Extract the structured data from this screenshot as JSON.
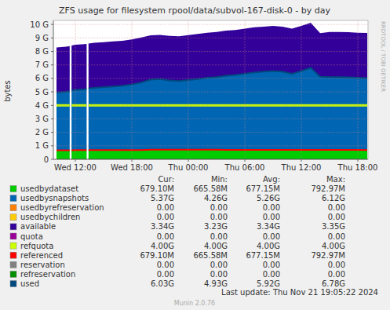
{
  "chart_data": {
    "type": "area",
    "title": "ZFS usage for filesystem rpool/data/subvol-167-disk-0 - by day",
    "y_label": "bytes",
    "side_text": "RRDTOOL / TOBI OETIKER",
    "last_update": "Last update: Thu Nov 21 19:05:22 2024",
    "footer": "Munin 2.0.76",
    "stat_headers": [
      "Cur:",
      "Min:",
      "Avg:",
      "Max:"
    ],
    "stacked": true,
    "grid": true,
    "xlim": [
      9.667,
      43.083
    ],
    "xticks": [
      {
        "value": 12,
        "label": "Wed 12:00"
      },
      {
        "value": 18,
        "label": "Wed 18:00"
      },
      {
        "value": 24,
        "label": "Thu 00:00"
      },
      {
        "value": 30,
        "label": "Thu 06:00"
      },
      {
        "value": 36,
        "label": "Thu 12:00"
      },
      {
        "value": 42,
        "label": "Thu 18:00"
      }
    ],
    "ylim": [
      0,
      10.3
    ],
    "yticks": [
      0,
      {
        "value": 1,
        "label": "1 G"
      },
      {
        "value": 2,
        "label": "2 G"
      },
      {
        "value": 3,
        "label": "3 G"
      },
      {
        "value": 4,
        "label": "4 G"
      },
      {
        "value": 5,
        "label": "5 G"
      },
      {
        "value": 6,
        "label": "6 G"
      },
      {
        "value": 7,
        "label": "7 G"
      },
      {
        "value": 8,
        "label": "8 G"
      },
      {
        "value": 9,
        "label": "9 G"
      },
      {
        "value": 10,
        "label": "10 G"
      }
    ],
    "x": [
      10,
      11,
      11.4,
      11.5,
      11.6,
      12,
      13,
      13.2,
      13.3,
      13.4,
      14,
      15,
      16,
      17,
      18,
      19,
      20,
      21,
      22,
      23,
      24,
      25,
      26,
      27,
      28,
      29,
      30,
      31,
      32,
      33,
      34,
      35,
      36,
      37,
      38,
      39,
      40,
      41,
      42,
      43
    ],
    "series": [
      {
        "name": "usedbydataset",
        "type": "area",
        "color": "#00cc00",
        "stats": [
          "679.10M",
          "665.58M",
          "677.15M",
          "792.97M"
        ],
        "values": [
          0.67,
          0.67,
          0.67,
          null,
          0.67,
          0.69,
          0.69,
          0.69,
          null,
          0.69,
          0.69,
          0.69,
          0.69,
          0.69,
          0.69,
          0.69,
          0.72,
          0.72,
          0.72,
          0.72,
          0.72,
          0.72,
          0.72,
          0.72,
          0.7,
          0.7,
          0.7,
          0.7,
          0.7,
          0.7,
          0.7,
          0.7,
          0.7,
          0.7,
          0.7,
          0.7,
          0.7,
          0.7,
          0.7,
          0.679
        ]
      },
      {
        "name": "usedbysnapshots",
        "type": "area",
        "color": "#0066b3",
        "stats": [
          "5.37G",
          "4.26G",
          "5.26G",
          "6.12G"
        ],
        "values": [
          4.27,
          4.33,
          4.38,
          null,
          4.43,
          4.46,
          4.51,
          4.53,
          null,
          4.56,
          4.61,
          4.66,
          4.71,
          4.76,
          4.86,
          5.01,
          5.18,
          5.23,
          5.13,
          5.08,
          5.16,
          5.23,
          5.33,
          5.38,
          5.5,
          5.55,
          5.65,
          5.75,
          5.8,
          5.85,
          5.8,
          5.65,
          5.85,
          6.08,
          5.42,
          5.4,
          5.4,
          5.38,
          5.35,
          5.35
        ]
      },
      {
        "name": "usedbyrefreservation",
        "type": "area",
        "color": "#ff8000",
        "stats": [
          "0.00",
          "0.00",
          "0.00",
          "0.00"
        ],
        "values": [
          0,
          0,
          0,
          null,
          0,
          0,
          0,
          0,
          null,
          0,
          0,
          0,
          0,
          0,
          0,
          0,
          0,
          0,
          0,
          0,
          0,
          0,
          0,
          0,
          0,
          0,
          0,
          0,
          0,
          0,
          0,
          0,
          0,
          0,
          0,
          0,
          0,
          0,
          0,
          0
        ]
      },
      {
        "name": "usedbychildren",
        "type": "area",
        "color": "#ffcc00",
        "stats": [
          "0.00",
          "0.00",
          "0.00",
          "0.00"
        ],
        "values": [
          0,
          0,
          0,
          null,
          0,
          0,
          0,
          0,
          null,
          0,
          0,
          0,
          0,
          0,
          0,
          0,
          0,
          0,
          0,
          0,
          0,
          0,
          0,
          0,
          0,
          0,
          0,
          0,
          0,
          0,
          0,
          0,
          0,
          0,
          0,
          0,
          0,
          0,
          0,
          0
        ]
      },
      {
        "name": "available",
        "type": "area",
        "color": "#330099",
        "stats": [
          "3.34G",
          "3.23G",
          "3.34G",
          "3.35G"
        ],
        "values": [
          3.35,
          3.35,
          3.34,
          null,
          3.34,
          3.34,
          3.34,
          3.34,
          null,
          3.34,
          3.34,
          3.34,
          3.34,
          3.34,
          3.34,
          3.34,
          3.3,
          3.28,
          3.3,
          3.32,
          3.33,
          3.34,
          3.34,
          3.34,
          3.34,
          3.34,
          3.34,
          3.34,
          3.34,
          3.34,
          3.34,
          3.34,
          3.34,
          3.35,
          3.23,
          3.34,
          3.34,
          3.34,
          3.34,
          3.34
        ]
      },
      {
        "name": "quota",
        "type": "line",
        "color": "#990099",
        "stats": [
          "0.00",
          "0.00",
          "0.00",
          "0.00"
        ],
        "values": [
          0,
          0,
          0,
          null,
          0,
          0,
          0,
          0,
          null,
          0,
          0,
          0,
          0,
          0,
          0,
          0,
          0,
          0,
          0,
          0,
          0,
          0,
          0,
          0,
          0,
          0,
          0,
          0,
          0,
          0,
          0,
          0,
          0,
          0,
          0,
          0,
          0,
          0,
          0,
          0
        ]
      },
      {
        "name": "refquota",
        "type": "line",
        "color": "#ccff00",
        "stats": [
          "4.00G",
          "4.00G",
          "4.00G",
          "4.00G"
        ],
        "values": [
          4,
          4,
          4,
          null,
          4,
          4,
          4,
          4,
          null,
          4,
          4,
          4,
          4,
          4,
          4,
          4,
          4,
          4,
          4,
          4,
          4,
          4,
          4,
          4,
          4,
          4,
          4,
          4,
          4,
          4,
          4,
          4,
          4,
          4,
          4,
          4,
          4,
          4,
          4,
          4
        ]
      },
      {
        "name": "referenced",
        "type": "line",
        "color": "#ff0000",
        "stats": [
          "679.10M",
          "665.58M",
          "677.15M",
          "792.97M"
        ],
        "values": [
          0.67,
          0.67,
          0.67,
          null,
          0.67,
          0.69,
          0.69,
          0.69,
          null,
          0.69,
          0.69,
          0.69,
          0.69,
          0.69,
          0.69,
          0.69,
          0.72,
          0.72,
          0.72,
          0.72,
          0.72,
          0.72,
          0.72,
          0.72,
          0.7,
          0.7,
          0.7,
          0.7,
          0.7,
          0.7,
          0.7,
          0.7,
          0.7,
          0.7,
          0.7,
          0.7,
          0.7,
          0.7,
          0.7,
          0.679
        ]
      },
      {
        "name": "reservation",
        "type": "line",
        "color": "#808080",
        "stats": [
          "0.00",
          "0.00",
          "0.00",
          "0.00"
        ],
        "values": [
          0,
          0,
          0,
          null,
          0,
          0,
          0,
          0,
          null,
          0,
          0,
          0,
          0,
          0,
          0,
          0,
          0,
          0,
          0,
          0,
          0,
          0,
          0,
          0,
          0,
          0,
          0,
          0,
          0,
          0,
          0,
          0,
          0,
          0,
          0,
          0,
          0,
          0,
          0,
          0
        ]
      },
      {
        "name": "refreservation",
        "type": "line",
        "color": "#008f00",
        "stats": [
          "0.00",
          "0.00",
          "0.00",
          "0.00"
        ],
        "values": [
          0,
          0,
          0,
          null,
          0,
          0,
          0,
          0,
          null,
          0,
          0,
          0,
          0,
          0,
          0,
          0,
          0,
          0,
          0,
          0,
          0,
          0,
          0,
          0,
          0,
          0,
          0,
          0,
          0,
          0,
          0,
          0,
          0,
          0,
          0,
          0,
          0,
          0,
          0,
          0
        ]
      },
      {
        "name": "used",
        "type": "line",
        "color": "#00487d",
        "stats": [
          "6.03G",
          "4.93G",
          "5.92G",
          "6.78G"
        ],
        "values": [
          4.94,
          5.0,
          5.05,
          null,
          5.1,
          5.15,
          5.2,
          5.22,
          null,
          5.25,
          5.3,
          5.35,
          5.4,
          5.45,
          5.55,
          5.7,
          5.9,
          5.95,
          5.85,
          5.8,
          5.88,
          5.95,
          6.05,
          6.1,
          6.2,
          6.25,
          6.35,
          6.45,
          6.5,
          6.55,
          6.5,
          6.35,
          6.55,
          6.78,
          6.12,
          6.1,
          6.1,
          6.08,
          6.05,
          6.03
        ]
      }
    ]
  }
}
